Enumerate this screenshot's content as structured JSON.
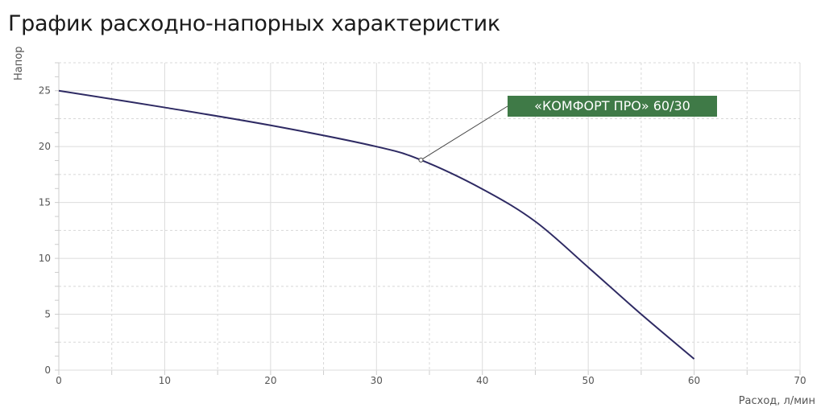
{
  "title": "График расходно-напорных характеристик",
  "chart_data": {
    "type": "line",
    "title": "График расходно-напорных характеристик",
    "xlabel": "Расход, л/мин",
    "ylabel": "Напор",
    "xlim": [
      0,
      70
    ],
    "ylim": [
      0,
      27.5
    ],
    "xticks": [
      "0",
      "10",
      "20",
      "30",
      "40",
      "50",
      "60",
      "70"
    ],
    "yticks": [
      "0",
      "5",
      "10",
      "15",
      "20",
      "25"
    ],
    "grid": true,
    "series": [
      {
        "name": "«КОМФОРТ ПРО» 60/30",
        "color": "#2e2a63",
        "x": [
          0,
          10,
          20,
          30,
          34.2,
          40,
          45,
          50,
          55,
          60
        ],
        "y": [
          25,
          23.5,
          21.9,
          20,
          18.8,
          16.2,
          13.3,
          9.2,
          5,
          1
        ]
      }
    ],
    "annotation": {
      "text": "«КОМФОРТ ПРО» 60/30",
      "x": 34.2,
      "y": 18.8,
      "color": "#3f7a47"
    }
  }
}
